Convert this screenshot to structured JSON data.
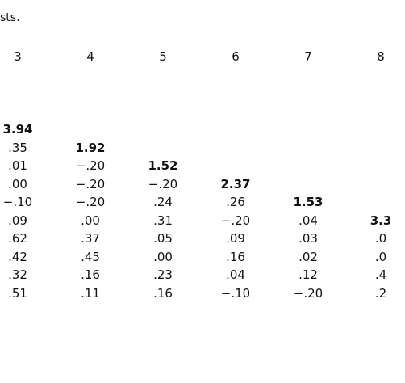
{
  "caption": "sts.",
  "columns": [
    "3",
    "4",
    "5",
    "6",
    "7",
    "8"
  ],
  "rows": [
    {
      "cells": [
        "3.94",
        "",
        "",
        "",
        "",
        ""
      ],
      "bold_col": 0
    },
    {
      "cells": [
        ".35",
        "1.92",
        "",
        "",
        "",
        ""
      ],
      "bold_col": 1
    },
    {
      "cells": [
        ".01",
        "−.20",
        "1.52",
        "",
        "",
        ""
      ],
      "bold_col": 2
    },
    {
      "cells": [
        ".00",
        "−.20",
        "−.20",
        "2.37",
        "",
        ""
      ],
      "bold_col": 3
    },
    {
      "cells": [
        "−.10",
        "−.20",
        ".24",
        ".26",
        "1.53",
        ""
      ],
      "bold_col": 4
    },
    {
      "cells": [
        ".09",
        ".00",
        ".31",
        "−.20",
        ".04",
        "3.3"
      ],
      "bold_col": 5
    },
    {
      "cells": [
        ".62",
        ".37",
        ".05",
        ".09",
        ".03",
        ".0"
      ],
      "bold_col": -1
    },
    {
      "cells": [
        ".42",
        ".45",
        ".00",
        ".16",
        ".02",
        ".0"
      ],
      "bold_col": -1
    },
    {
      "cells": [
        ".32",
        ".16",
        ".23",
        ".04",
        ".12",
        ".4"
      ],
      "bold_col": -1
    },
    {
      "cells": [
        ".51",
        ".11",
        ".16",
        "−.10",
        "−.20",
        ".2"
      ],
      "bold_col": -1
    }
  ]
}
